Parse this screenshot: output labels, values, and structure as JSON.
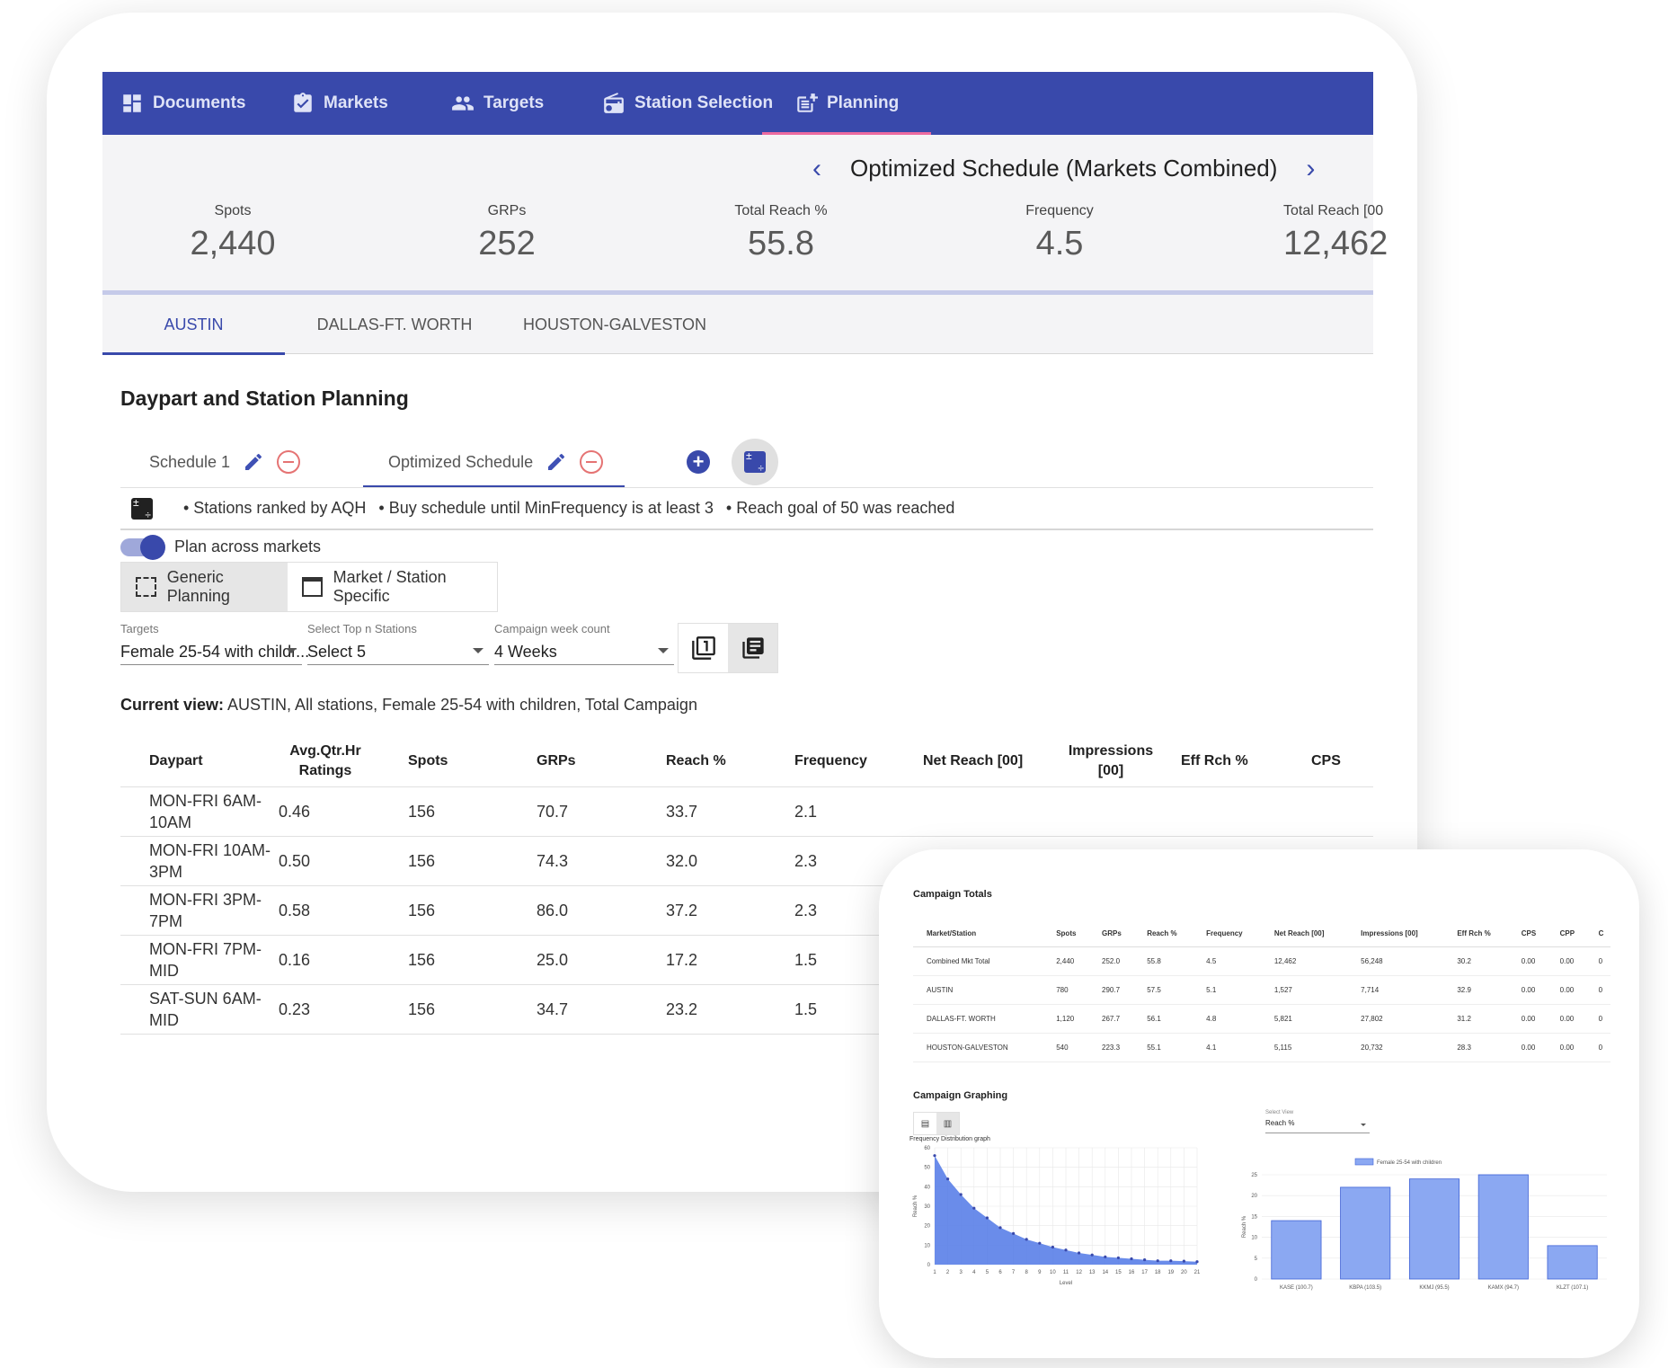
{
  "nav": {
    "items": [
      {
        "label": "Documents",
        "icon": "dashboard-icon"
      },
      {
        "label": "Markets",
        "icon": "clipboard-check-icon"
      },
      {
        "label": "Targets",
        "icon": "people-icon"
      },
      {
        "label": "Station Selection",
        "icon": "radio-icon"
      },
      {
        "label": "Planning",
        "icon": "post-add-icon"
      }
    ]
  },
  "schedule_nav": {
    "title": "Optimized Schedule (Markets Combined)",
    "prev": "‹",
    "next": "›"
  },
  "stats": [
    {
      "label": "Spots",
      "value": "2,440"
    },
    {
      "label": "GRPs",
      "value": "252"
    },
    {
      "label": "Total Reach %",
      "value": "55.8"
    },
    {
      "label": "Frequency",
      "value": "4.5"
    },
    {
      "label": "Total Reach [00",
      "value": "12,462"
    }
  ],
  "market_tabs": [
    "AUSTIN",
    "DALLAS-FT. WORTH",
    "HOUSTON-GALVESTON"
  ],
  "section_title": "Daypart and Station Planning",
  "schedule_tabs": [
    "Schedule 1",
    "Optimized Schedule"
  ],
  "rules": [
    "• Stations ranked by AQH",
    "• Buy schedule until MinFrequency is at least 3",
    "• Reach goal of 50 was reached"
  ],
  "plan_across": "Plan across markets",
  "modes": [
    "Generic Planning",
    "Market / Station Specific"
  ],
  "filters": {
    "targets": {
      "label": "Targets",
      "value": "Female 25-54 with childr..."
    },
    "top_n": {
      "label": "Select Top n Stations",
      "value": "Select 5"
    },
    "weeks": {
      "label": "Campaign week count",
      "value": "4 Weeks"
    }
  },
  "current_view": {
    "label": "Current view:",
    "value": "AUSTIN, All stations, Female 25-54 with children, Total Campaign"
  },
  "grid": {
    "headers": [
      "Daypart",
      "Avg.Qtr.Hr Ratings",
      "Spots",
      "GRPs",
      "Reach %",
      "Frequency",
      "Net Reach [00]",
      "Impressions [00]",
      "Eff Rch %",
      "CPS"
    ],
    "rows": [
      [
        "MON-FRI 6AM-10AM",
        "0.46",
        "156",
        "70.7",
        "33.7",
        "2.1"
      ],
      [
        "MON-FRI 10AM-3PM",
        "0.50",
        "156",
        "74.3",
        "32.0",
        "2.3"
      ],
      [
        "MON-FRI 3PM-7PM",
        "0.58",
        "156",
        "86.0",
        "37.2",
        "2.3"
      ],
      [
        "MON-FRI 7PM-MID",
        "0.16",
        "156",
        "25.0",
        "17.2",
        "1.5"
      ],
      [
        "SAT-SUN 6AM-MID",
        "0.23",
        "156",
        "34.7",
        "23.2",
        "1.5"
      ]
    ]
  },
  "overlay": {
    "totals_title": "Campaign Totals",
    "totals_headers": [
      "Market/Station",
      "Spots",
      "GRPs",
      "Reach %",
      "Frequency",
      "Net Reach [00]",
      "Impressions [00]",
      "Eff Rch %",
      "CPS",
      "CPP",
      "C"
    ],
    "totals_rows": [
      [
        "Combined Mkt Total",
        "2,440",
        "252.0",
        "55.8",
        "4.5",
        "12,462",
        "56,248",
        "30.2",
        "0.00",
        "0.00",
        "0"
      ],
      [
        "AUSTIN",
        "780",
        "290.7",
        "57.5",
        "5.1",
        "1,527",
        "7,714",
        "32.9",
        "0.00",
        "0.00",
        "0"
      ],
      [
        "DALLAS-FT. WORTH",
        "1,120",
        "267.7",
        "56.1",
        "4.8",
        "5,821",
        "27,802",
        "31.2",
        "0.00",
        "0.00",
        "0"
      ],
      [
        "HOUSTON-GALVESTON",
        "540",
        "223.3",
        "55.1",
        "4.1",
        "5,115",
        "20,732",
        "28.3",
        "0.00",
        "0.00",
        "0"
      ]
    ],
    "graphing_title": "Campaign Graphing",
    "select_view": {
      "label": "Select View",
      "value": "Reach %"
    }
  },
  "chart_data": [
    {
      "type": "area",
      "title": "Frequency Distribution graph",
      "xlabel": "Level",
      "ylabel": "Reach %",
      "ylim": [
        0,
        60
      ],
      "yticks": [
        0,
        10,
        20,
        30,
        40,
        50,
        60
      ],
      "x": [
        1,
        2,
        3,
        4,
        5,
        6,
        7,
        8,
        9,
        10,
        11,
        12,
        13,
        14,
        15,
        16,
        17,
        18,
        19,
        20,
        21
      ],
      "values": [
        56,
        44,
        36,
        29,
        24,
        19,
        16,
        13,
        11,
        9,
        7.5,
        6,
        5,
        4,
        3.5,
        3,
        2.5,
        2,
        2,
        1.8,
        1.5
      ],
      "color": "#5a7fe8",
      "grid": true
    },
    {
      "type": "bar",
      "categories": [
        "KASE (100.7)",
        "KBPA (103.5)",
        "KKMJ (95.5)",
        "KAMX (94.7)",
        "KLZT (107.1)"
      ],
      "series": [
        {
          "name": "Female 25-54 with children",
          "values": [
            14,
            22,
            24,
            25,
            8
          ]
        }
      ],
      "ylabel": "Reach %",
      "ylim": [
        0,
        25
      ],
      "yticks": [
        0,
        5,
        10,
        15,
        20,
        25
      ],
      "legend": "top",
      "color": "#8ba8f2",
      "grid": true
    }
  ]
}
